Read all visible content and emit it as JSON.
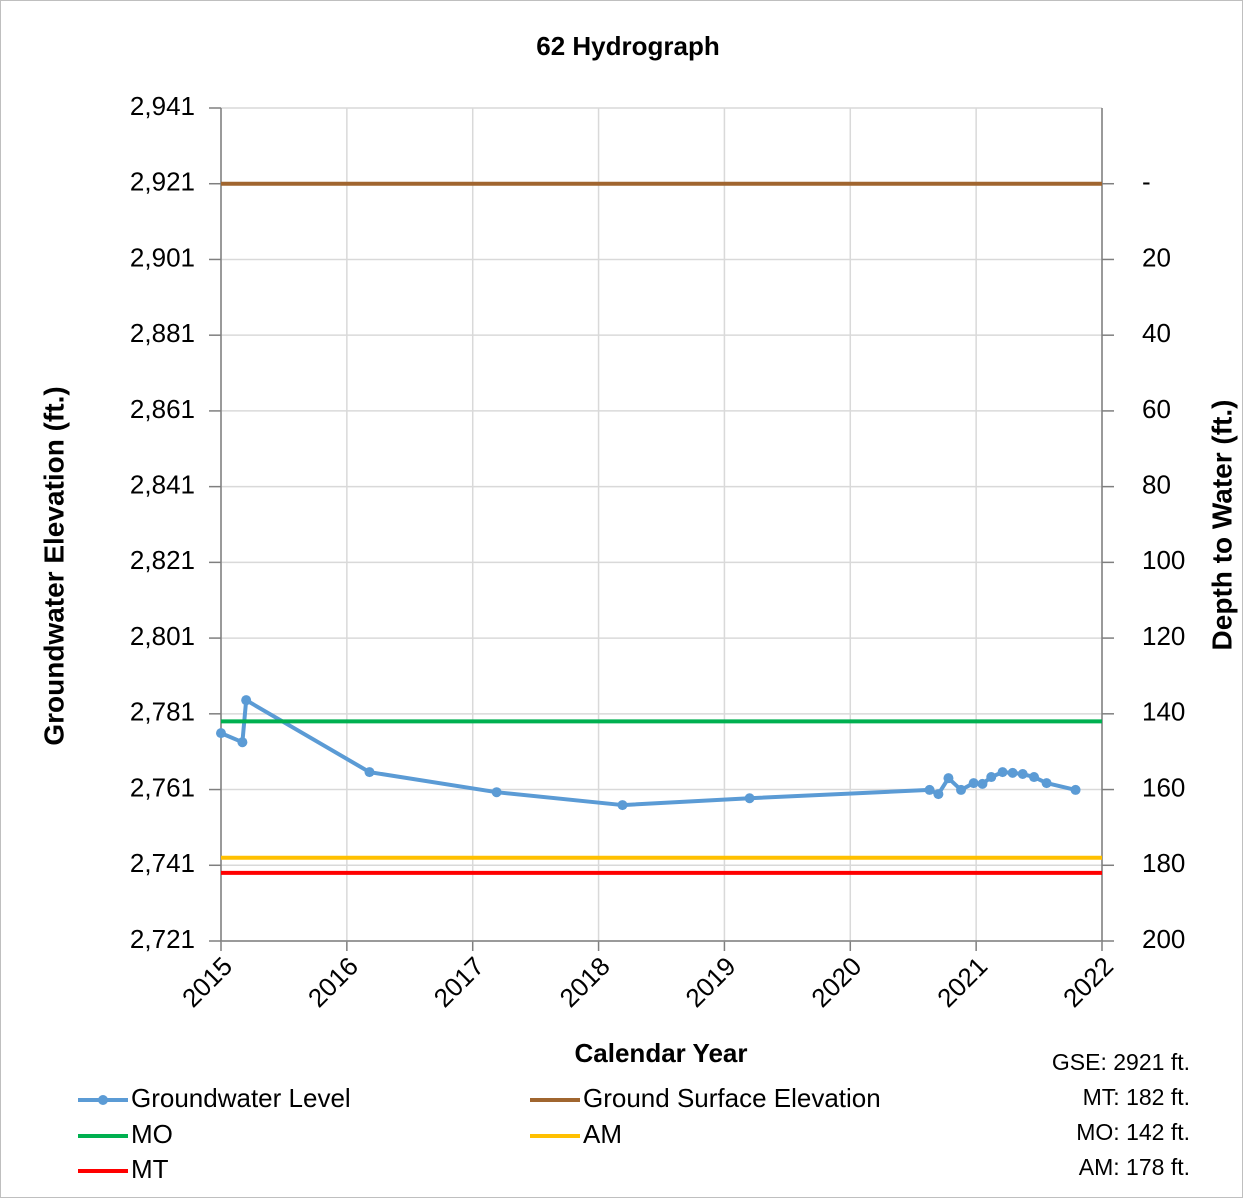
{
  "chart_data": {
    "type": "line",
    "title": "62 Hydrograph",
    "xlabel": "Calendar Year",
    "ylabel": "Groundwater Elevation (ft.)",
    "y2label": "Depth to Water (ft.)",
    "xlim": [
      2015,
      2022
    ],
    "xticks": [
      2015,
      2016,
      2017,
      2018,
      2019,
      2020,
      2021,
      2022
    ],
    "ylim": [
      2721,
      2941
    ],
    "yticks": [
      {
        "value": 2721,
        "label": "2,721"
      },
      {
        "value": 2741,
        "label": "2,741"
      },
      {
        "value": 2761,
        "label": "2,761"
      },
      {
        "value": 2781,
        "label": "2,781"
      },
      {
        "value": 2801,
        "label": "2,801"
      },
      {
        "value": 2821,
        "label": "2,821"
      },
      {
        "value": 2841,
        "label": "2,841"
      },
      {
        "value": 2861,
        "label": "2,861"
      },
      {
        "value": 2881,
        "label": "2,881"
      },
      {
        "value": 2901,
        "label": "2,901"
      },
      {
        "value": 2921,
        "label": "2,921"
      },
      {
        "value": 2941,
        "label": "2,941"
      }
    ],
    "y2lim": [
      200,
      -20
    ],
    "y2ticks": [
      {
        "value": 0,
        "label": "-"
      },
      20,
      40,
      60,
      80,
      100,
      120,
      140,
      160,
      180,
      200
    ],
    "grid": true,
    "legend": "bottom",
    "series": [
      {
        "name": "Groundwater Level",
        "color": "#5b9bd5",
        "markers": true,
        "x": [
          2015.0,
          2015.17,
          2015.2,
          2016.18,
          2017.19,
          2018.19,
          2019.2,
          2020.63,
          2020.7,
          2020.78,
          2020.88,
          2020.98,
          2021.05,
          2021.12,
          2021.21,
          2021.29,
          2021.37,
          2021.46,
          2021.56,
          2021.79
        ],
        "values": [
          2775.9,
          2773.5,
          2784.6,
          2765.6,
          2760.3,
          2756.9,
          2758.7,
          2760.9,
          2759.8,
          2764.0,
          2760.9,
          2762.7,
          2762.5,
          2764.3,
          2765.6,
          2765.4,
          2765.1,
          2764.3,
          2762.7,
          2760.9
        ]
      },
      {
        "name": "Ground Surface Elevation",
        "color": "#a0652f",
        "x": [
          2015,
          2022
        ],
        "values": [
          2921,
          2921
        ]
      },
      {
        "name": "MO",
        "color": "#00b050",
        "x": [
          2015,
          2022
        ],
        "values": [
          2779,
          2779
        ]
      },
      {
        "name": "AM",
        "color": "#ffc000",
        "x": [
          2015,
          2022
        ],
        "values": [
          2743,
          2743
        ]
      },
      {
        "name": "MT",
        "color": "#ff0000",
        "x": [
          2015,
          2022
        ],
        "values": [
          2739,
          2739
        ]
      }
    ],
    "annotations": [
      "GSE: 2921 ft.",
      "MT: 182 ft.",
      "MO: 142 ft.",
      "AM: 178 ft."
    ]
  }
}
